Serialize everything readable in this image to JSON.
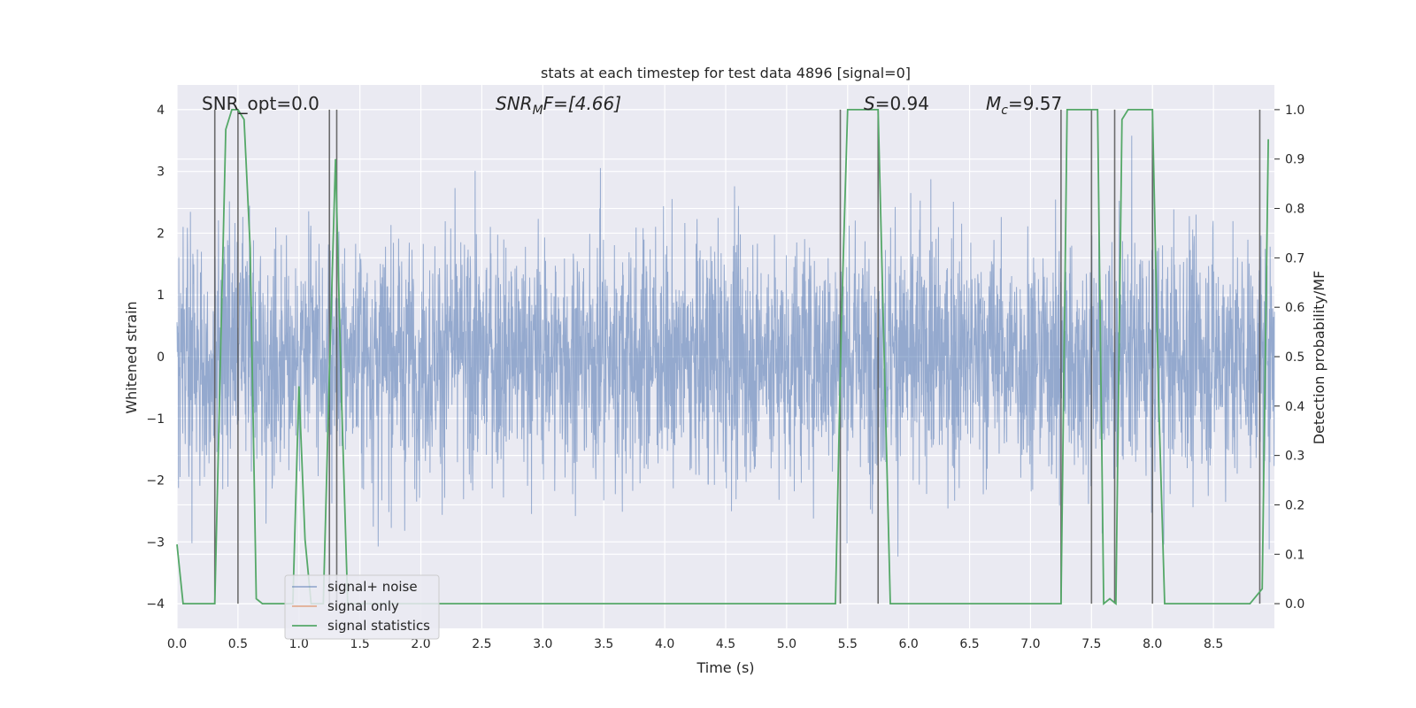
{
  "chart_data": {
    "type": "line",
    "title": "stats at each timestep for test data 4896 [signal=0]",
    "xlabel": "Time (s)",
    "ylabel_left": "Whitened strain",
    "ylabel_right": "Detection probability/MF",
    "xlim": [
      0.0,
      9.0
    ],
    "ylim_left": [
      -4.4,
      4.4
    ],
    "ylim_right": [
      -0.05,
      1.05
    ],
    "x_ticks": [
      "0.0",
      "0.5",
      "1.0",
      "1.5",
      "2.0",
      "2.5",
      "3.0",
      "3.5",
      "4.0",
      "4.5",
      "5.0",
      "5.5",
      "6.0",
      "6.5",
      "7.0",
      "7.5",
      "8.0",
      "8.5"
    ],
    "y_left_ticks": [
      "−4",
      "−3",
      "−2",
      "−1",
      "0",
      "1",
      "2",
      "3",
      "4"
    ],
    "y_right_ticks": [
      "0.0",
      "0.1",
      "0.2",
      "0.3",
      "0.4",
      "0.5",
      "0.6",
      "0.7",
      "0.8",
      "0.9",
      "1.0"
    ],
    "grid": true,
    "legend_placement": "lower-left",
    "colors": {
      "background": "#eaeaf2",
      "grid": "#ffffff",
      "signal_noise": "#4c72b0",
      "signal_only": "#dd8452",
      "signal_statistics": "#55a868",
      "vertical_markers": "#555555"
    },
    "annotations": {
      "snr_opt": "SNR_opt=0.0",
      "snr_mf_sym": "SNR",
      "snr_mf_sub": "M",
      "snr_mf_rest": "F=[4.66]",
      "s_sym": "S",
      "s_rest": "=0.94",
      "mc_sym": "M",
      "mc_sub": "c",
      "mc_rest": "=9.57"
    },
    "series": [
      {
        "name": "signal+ noise",
        "description_only": "whitened noise strain, std ~1 with peaks to about ±3.8",
        "t_start": 0.0,
        "t_end": 9.0
      },
      {
        "name": "signal only",
        "values": []
      },
      {
        "name": "signal statistics",
        "axis": "right",
        "x": [
          0.0,
          0.05,
          0.1,
          0.2,
          0.3,
          0.31,
          0.4,
          0.45,
          0.5,
          0.55,
          0.6,
          0.65,
          0.7,
          0.75,
          0.85,
          0.95,
          1.0,
          1.05,
          1.1,
          1.15,
          1.2,
          1.25,
          1.3,
          1.35,
          1.4,
          1.45,
          1.5,
          2.0,
          3.0,
          4.0,
          5.0,
          5.4,
          5.45,
          5.5,
          5.55,
          5.6,
          5.65,
          5.7,
          5.75,
          5.85,
          5.9,
          6.5,
          7.0,
          7.25,
          7.3,
          7.35,
          7.4,
          7.45,
          7.5,
          7.55,
          7.6,
          7.65,
          7.7,
          7.75,
          7.8,
          7.85,
          7.9,
          7.95,
          8.0,
          8.05,
          8.1,
          8.5,
          8.8,
          8.9,
          8.95
        ],
        "values": [
          0.12,
          0.0,
          0.0,
          0.0,
          0.0,
          0.0,
          0.96,
          1.0,
          1.0,
          0.98,
          0.72,
          0.01,
          0.0,
          0.0,
          0.0,
          0.0,
          0.44,
          0.13,
          0.0,
          0.0,
          0.0,
          0.47,
          0.9,
          0.41,
          0.0,
          0.0,
          0.0,
          0.0,
          0.0,
          0.0,
          0.0,
          0.0,
          0.58,
          1.0,
          1.0,
          1.0,
          1.0,
          1.0,
          1.0,
          0.0,
          0.0,
          0.0,
          0.0,
          0.0,
          1.0,
          1.0,
          1.0,
          1.0,
          1.0,
          1.0,
          0.0,
          0.01,
          0.0,
          0.98,
          1.0,
          1.0,
          1.0,
          1.0,
          1.0,
          0.42,
          0.0,
          0.0,
          0.0,
          0.03,
          0.94
        ]
      }
    ],
    "vertical_markers_x": [
      0.31,
      0.5,
      1.25,
      1.31,
      5.44,
      5.75,
      7.25,
      7.5,
      7.69,
      8.0,
      8.88
    ]
  },
  "legend": {
    "items": [
      {
        "label": "signal+ noise"
      },
      {
        "label": "signal only"
      },
      {
        "label": "signal statistics"
      }
    ]
  }
}
